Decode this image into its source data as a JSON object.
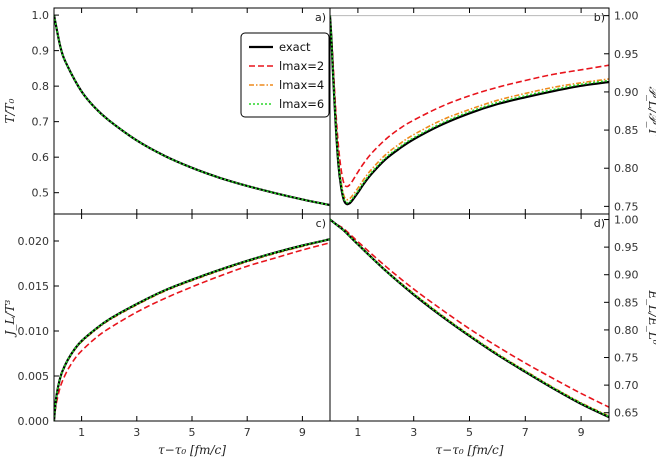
{
  "colors": {
    "exact": "#000000",
    "lmax2": "#e8141c",
    "lmax4": "#ee8a1c",
    "lmax6": "#2ad62a"
  },
  "legend": {
    "placement": "top-center of panel a",
    "entries": [
      {
        "label": "exact",
        "style": "solid",
        "color": "#000000"
      },
      {
        "label": "lmax=2",
        "style": "dashed",
        "color": "#e8141c"
      },
      {
        "label": "lmax=4",
        "style": "dashdot",
        "color": "#ee8a1c"
      },
      {
        "label": "lmax=6",
        "style": "dotted",
        "color": "#2ad62a"
      }
    ]
  },
  "xaxis": {
    "label": "τ−τ₀ [fm/c]",
    "range": [
      0,
      10
    ],
    "ticks": [
      "1",
      "3",
      "5",
      "7",
      "9"
    ]
  },
  "chart_data": [
    {
      "id": "a",
      "panel_label": "a)",
      "type": "line",
      "ylabel": "T/T₀",
      "yaxis_side": "left",
      "ylim": [
        0.44,
        1.02
      ],
      "yticks": [
        "0.5",
        "0.6",
        "0.7",
        "0.8",
        "0.9",
        "1.0"
      ],
      "x": [
        0,
        0.25,
        0.5,
        1,
        1.5,
        2,
        3,
        4,
        5,
        6,
        7,
        8,
        9,
        10
      ],
      "series": [
        {
          "name": "exact",
          "values": [
            1.0,
            0.905,
            0.855,
            0.785,
            0.738,
            0.703,
            0.647,
            0.604,
            0.57,
            0.542,
            0.519,
            0.499,
            0.481,
            0.465
          ]
        },
        {
          "name": "lmax=2",
          "values": [
            1.0,
            0.905,
            0.855,
            0.785,
            0.738,
            0.703,
            0.647,
            0.604,
            0.57,
            0.542,
            0.519,
            0.499,
            0.481,
            0.465
          ]
        },
        {
          "name": "lmax=4",
          "values": [
            1.0,
            0.905,
            0.855,
            0.785,
            0.738,
            0.703,
            0.647,
            0.604,
            0.57,
            0.542,
            0.519,
            0.499,
            0.481,
            0.465
          ]
        },
        {
          "name": "lmax=6",
          "values": [
            1.0,
            0.905,
            0.855,
            0.785,
            0.738,
            0.703,
            0.647,
            0.604,
            0.57,
            0.542,
            0.519,
            0.499,
            0.481,
            0.465
          ]
        }
      ]
    },
    {
      "id": "b",
      "panel_label": "b)",
      "type": "line",
      "ylabel": "𝒫_L/𝒫_T",
      "yaxis_side": "right",
      "ylim": [
        0.74,
        1.01
      ],
      "yticks": [
        "0.75",
        "0.80",
        "0.85",
        "0.90",
        "0.95",
        "1.00"
      ],
      "reference_line": 1.0,
      "x": [
        0,
        0.05,
        0.1,
        0.2,
        0.3,
        0.4,
        0.5,
        0.6,
        0.7,
        0.8,
        1.0,
        1.2,
        1.5,
        2,
        2.5,
        3,
        4,
        5,
        6,
        7,
        8,
        9,
        10
      ],
      "series": [
        {
          "name": "exact",
          "values": [
            1.0,
            0.97,
            0.93,
            0.86,
            0.805,
            0.775,
            0.758,
            0.753,
            0.754,
            0.758,
            0.768,
            0.779,
            0.793,
            0.812,
            0.826,
            0.838,
            0.857,
            0.872,
            0.884,
            0.893,
            0.901,
            0.908,
            0.913
          ]
        },
        {
          "name": "lmax=2",
          "values": [
            1.0,
            0.975,
            0.945,
            0.88,
            0.83,
            0.798,
            0.78,
            0.776,
            0.778,
            0.783,
            0.795,
            0.806,
            0.82,
            0.838,
            0.852,
            0.863,
            0.881,
            0.895,
            0.906,
            0.915,
            0.923,
            0.929,
            0.935
          ]
        },
        {
          "name": "lmax=4",
          "values": [
            1.0,
            0.972,
            0.935,
            0.868,
            0.812,
            0.782,
            0.764,
            0.759,
            0.76,
            0.764,
            0.774,
            0.785,
            0.799,
            0.818,
            0.832,
            0.844,
            0.863,
            0.877,
            0.889,
            0.898,
            0.906,
            0.912,
            0.917
          ]
        },
        {
          "name": "lmax=6",
          "values": [
            1.0,
            0.971,
            0.932,
            0.863,
            0.808,
            0.778,
            0.76,
            0.755,
            0.756,
            0.76,
            0.77,
            0.781,
            0.795,
            0.814,
            0.828,
            0.84,
            0.859,
            0.874,
            0.886,
            0.895,
            0.903,
            0.91,
            0.915
          ]
        }
      ]
    },
    {
      "id": "c",
      "panel_label": "c)",
      "type": "line",
      "ylabel": "J_L/T³",
      "yaxis_side": "left",
      "ylim": [
        0,
        0.023
      ],
      "yticks": [
        "0.000",
        "0.005",
        "0.010",
        "0.015",
        "0.020"
      ],
      "x": [
        0,
        0.05,
        0.1,
        0.2,
        0.3,
        0.5,
        0.75,
        1,
        1.5,
        2,
        3,
        4,
        5,
        6,
        7,
        8,
        9,
        10
      ],
      "series": [
        {
          "name": "exact",
          "values": [
            0,
            0.0018,
            0.003,
            0.0045,
            0.0055,
            0.0068,
            0.008,
            0.0089,
            0.0102,
            0.0113,
            0.013,
            0.0145,
            0.0157,
            0.0168,
            0.0178,
            0.0187,
            0.0195,
            0.0202
          ]
        },
        {
          "name": "lmax=2",
          "values": [
            0,
            0.0013,
            0.0022,
            0.0035,
            0.0044,
            0.0057,
            0.0069,
            0.0078,
            0.0092,
            0.0103,
            0.0121,
            0.0136,
            0.0149,
            0.0161,
            0.0172,
            0.0181,
            0.019,
            0.0198
          ]
        },
        {
          "name": "lmax=4",
          "values": [
            0,
            0.0017,
            0.0029,
            0.0044,
            0.0054,
            0.0067,
            0.0079,
            0.0088,
            0.0101,
            0.0112,
            0.0129,
            0.0144,
            0.0156,
            0.0167,
            0.0177,
            0.0186,
            0.0194,
            0.0202
          ]
        },
        {
          "name": "lmax=6",
          "values": [
            0,
            0.0018,
            0.003,
            0.0045,
            0.0055,
            0.0068,
            0.008,
            0.0089,
            0.0102,
            0.0113,
            0.013,
            0.0145,
            0.0157,
            0.0168,
            0.0178,
            0.0187,
            0.0195,
            0.0202
          ]
        }
      ]
    },
    {
      "id": "d",
      "panel_label": "d)",
      "type": "line",
      "ylabel": "E_L/E_L⁰",
      "yaxis_side": "right",
      "ylim": [
        0.635,
        1.01
      ],
      "yticks": [
        "0.65",
        "0.70",
        "0.75",
        "0.80",
        "0.85",
        "0.90",
        "0.95",
        "1.00"
      ],
      "x": [
        0,
        0.25,
        0.5,
        1,
        2,
        3,
        4,
        5,
        6,
        7,
        8,
        9,
        10
      ],
      "series": [
        {
          "name": "exact",
          "values": [
            1.0,
            0.99,
            0.98,
            0.955,
            0.907,
            0.864,
            0.825,
            0.789,
            0.755,
            0.724,
            0.694,
            0.666,
            0.642
          ]
        },
        {
          "name": "lmax=2",
          "values": [
            1.0,
            0.991,
            0.983,
            0.96,
            0.915,
            0.874,
            0.837,
            0.802,
            0.77,
            0.74,
            0.712,
            0.685,
            0.66
          ]
        },
        {
          "name": "lmax=4",
          "values": [
            1.0,
            0.99,
            0.98,
            0.956,
            0.908,
            0.866,
            0.827,
            0.791,
            0.757,
            0.726,
            0.696,
            0.668,
            0.644
          ]
        },
        {
          "name": "lmax=6",
          "values": [
            1.0,
            0.99,
            0.98,
            0.955,
            0.907,
            0.865,
            0.826,
            0.79,
            0.756,
            0.725,
            0.695,
            0.667,
            0.643
          ]
        }
      ]
    }
  ]
}
